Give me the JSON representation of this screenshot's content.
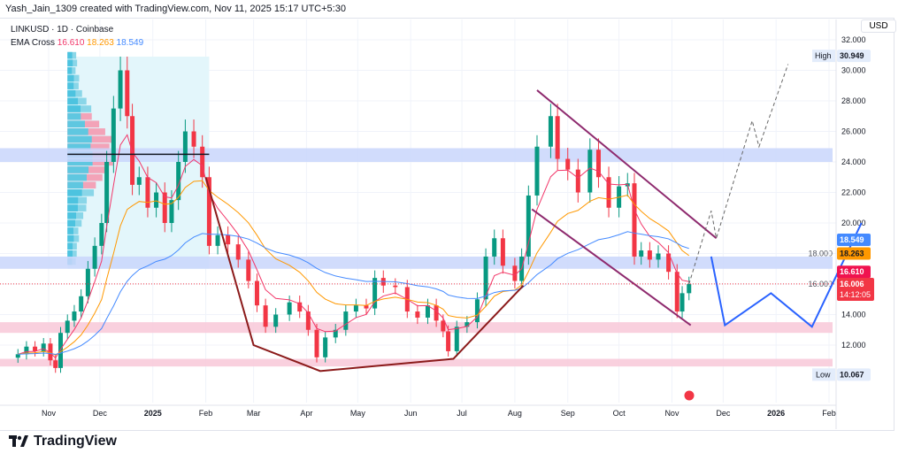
{
  "credit": "Yash_Jain_1309 created with TradingView.com, Nov 11, 2025 15:17 UTC+5:30",
  "legend": {
    "symbol": "LINKUSD · 1D · Coinbase",
    "indicator": "EMA Cross",
    "ema_fast": "16.610",
    "ema_mid": "18.263",
    "ema_slow": "18.549"
  },
  "currency": "USD",
  "brand": "TradingView",
  "colors": {
    "up": "#089981",
    "down": "#f23645",
    "ema_fast": "#f23669",
    "ema_mid": "#ff9800",
    "ema_slow": "#448aff",
    "zone_blue": "#c9d6fb",
    "zone_pink": "#f8c8d8",
    "bowl": "#8b1a1a",
    "channel": "#8e2a6e",
    "projection": "#2962ff"
  },
  "chart_data": {
    "type": "candlestick",
    "symbol": "LINKUSD",
    "interval": "1D",
    "exchange": "Coinbase",
    "ylim": [
      9.5,
      32.5
    ],
    "y_ticks": [
      "12.000",
      "14.000",
      "16.000",
      "18.000",
      "20.000",
      "22.000",
      "24.000",
      "26.000",
      "28.000",
      "30.000",
      "32.000"
    ],
    "x_ticks": [
      {
        "label": "Nov",
        "date": "2024-11-01"
      },
      {
        "label": "Dec",
        "date": "2024-12-01"
      },
      {
        "label": "2025",
        "date": "2025-01-01"
      },
      {
        "label": "Feb",
        "date": "2025-02-01"
      },
      {
        "label": "Mar",
        "date": "2025-03-01"
      },
      {
        "label": "Apr",
        "date": "2025-04-01"
      },
      {
        "label": "May",
        "date": "2025-05-01"
      },
      {
        "label": "Jun",
        "date": "2025-06-01"
      },
      {
        "label": "Jul",
        "date": "2025-07-01"
      },
      {
        "label": "Aug",
        "date": "2025-08-01"
      },
      {
        "label": "Sep",
        "date": "2025-09-01"
      },
      {
        "label": "Oct",
        "date": "2025-10-01"
      },
      {
        "label": "Nov",
        "date": "2025-11-01"
      },
      {
        "label": "Dec",
        "date": "2025-12-01"
      },
      {
        "label": "2026",
        "date": "2026-01-01"
      },
      {
        "label": "Feb",
        "date": "2026-02-01"
      }
    ],
    "closes": [
      [
        "2024-10-14",
        11.4
      ],
      [
        "2024-10-19",
        11.9
      ],
      [
        "2024-10-24",
        11.6
      ],
      [
        "2024-10-29",
        12.1
      ],
      [
        "2024-11-02",
        11.0
      ],
      [
        "2024-11-05",
        10.5
      ],
      [
        "2024-11-08",
        12.8
      ],
      [
        "2024-11-12",
        13.6
      ],
      [
        "2024-11-16",
        14.2
      ],
      [
        "2024-11-20",
        15.2
      ],
      [
        "2024-11-24",
        17.0
      ],
      [
        "2024-11-28",
        18.5
      ],
      [
        "2024-12-02",
        20.0
      ],
      [
        "2024-12-05",
        24.0
      ],
      [
        "2024-12-09",
        27.5
      ],
      [
        "2024-12-13",
        30.0
      ],
      [
        "2024-12-17",
        27.0
      ],
      [
        "2024-12-20",
        22.5
      ],
      [
        "2024-12-24",
        23.0
      ],
      [
        "2024-12-29",
        21.0
      ],
      [
        "2025-01-03",
        22.0
      ],
      [
        "2025-01-08",
        20.0
      ],
      [
        "2025-01-12",
        21.5
      ],
      [
        "2025-01-16",
        24.0
      ],
      [
        "2025-01-20",
        26.0
      ],
      [
        "2025-01-25",
        25.0
      ],
      [
        "2025-01-30",
        23.0
      ],
      [
        "2025-02-03",
        18.5
      ],
      [
        "2025-02-08",
        19.2
      ],
      [
        "2025-02-14",
        18.6
      ],
      [
        "2025-02-20",
        17.6
      ],
      [
        "2025-02-26",
        16.2
      ],
      [
        "2025-03-03",
        14.6
      ],
      [
        "2025-03-08",
        13.2
      ],
      [
        "2025-03-14",
        14.0
      ],
      [
        "2025-03-22",
        14.8
      ],
      [
        "2025-03-28",
        14.2
      ],
      [
        "2025-04-02",
        13.0
      ],
      [
        "2025-04-07",
        11.2
      ],
      [
        "2025-04-12",
        12.5
      ],
      [
        "2025-04-18",
        13.0
      ],
      [
        "2025-04-24",
        14.2
      ],
      [
        "2025-04-30",
        14.6
      ],
      [
        "2025-05-06",
        14.4
      ],
      [
        "2025-05-11",
        16.4
      ],
      [
        "2025-05-16",
        15.9
      ],
      [
        "2025-05-23",
        15.8
      ],
      [
        "2025-05-30",
        14.2
      ],
      [
        "2025-06-05",
        13.8
      ],
      [
        "2025-06-11",
        14.6
      ],
      [
        "2025-06-16",
        13.6
      ],
      [
        "2025-06-20",
        12.9
      ],
      [
        "2025-06-23",
        11.6
      ],
      [
        "2025-06-28",
        13.2
      ],
      [
        "2025-07-04",
        13.5
      ],
      [
        "2025-07-10",
        15.0
      ],
      [
        "2025-07-15",
        17.8
      ],
      [
        "2025-07-20",
        19.0
      ],
      [
        "2025-07-25",
        17.2
      ],
      [
        "2025-08-01",
        16.2
      ],
      [
        "2025-08-05",
        17.8
      ],
      [
        "2025-08-09",
        21.8
      ],
      [
        "2025-08-14",
        25.0
      ],
      [
        "2025-08-22",
        27.0
      ],
      [
        "2025-08-26",
        24.2
      ],
      [
        "2025-09-01",
        23.5
      ],
      [
        "2025-09-07",
        22.0
      ],
      [
        "2025-09-14",
        24.8
      ],
      [
        "2025-09-19",
        23.0
      ],
      [
        "2025-09-25",
        21.0
      ],
      [
        "2025-10-01",
        22.4
      ],
      [
        "2025-10-06",
        22.6
      ],
      [
        "2025-10-10",
        17.8
      ],
      [
        "2025-10-14",
        18.2
      ],
      [
        "2025-10-19",
        17.6
      ],
      [
        "2025-10-24",
        18.0
      ],
      [
        "2025-10-30",
        16.8
      ],
      [
        "2025-11-04",
        14.2
      ],
      [
        "2025-11-07",
        15.4
      ],
      [
        "2025-11-11",
        16.0
      ]
    ],
    "ema_periods_note_shown": false,
    "zones": [
      {
        "color": "blue",
        "from": 24.0,
        "to": 24.9
      },
      {
        "color": "blue",
        "from": 17.0,
        "to": 17.8
      },
      {
        "color": "pink",
        "from": 12.8,
        "to": 13.5
      },
      {
        "color": "pink",
        "from": 10.6,
        "to": 11.1
      }
    ],
    "bowl_line": [
      [
        "2025-02-01",
        23.0
      ],
      [
        "2025-03-01",
        12.0
      ],
      [
        "2025-04-09",
        10.3
      ],
      [
        "2025-06-26",
        11.1
      ],
      [
        "2025-08-06",
        15.9
      ]
    ],
    "channel_upper": [
      [
        "2025-08-14",
        28.7
      ],
      [
        "2025-11-27",
        19.0
      ]
    ],
    "channel_lower": [
      [
        "2025-08-11",
        20.9
      ],
      [
        "2025-11-12",
        13.3
      ]
    ],
    "projection_solid": [
      [
        "2025-11-24",
        17.8
      ],
      [
        "2025-12-02",
        13.3
      ],
      [
        "2025-12-29",
        15.4
      ],
      [
        "2026-01-22",
        13.2
      ],
      [
        "2026-02-20",
        20.0
      ]
    ],
    "projection_dashed": [
      [
        "2025-11-11",
        16.0
      ],
      [
        "2025-11-24",
        20.8
      ],
      [
        "2025-11-27",
        19.0
      ],
      [
        "2025-12-18",
        26.7
      ],
      [
        "2025-12-22",
        25.0
      ],
      [
        "2026-01-08",
        30.4
      ]
    ],
    "level_line": {
      "price": 24.5,
      "from": "2024-11-12",
      "to": "2025-02-03"
    },
    "price_labels": {
      "high": {
        "label": "High",
        "value": "30.949"
      },
      "low": {
        "label": "Low",
        "value": "10.067"
      },
      "ema_slow": "18.549",
      "ema_mid": "18.263",
      "ema_fast": "16.610",
      "last": "16.006",
      "countdown": "14:12:05"
    }
  }
}
